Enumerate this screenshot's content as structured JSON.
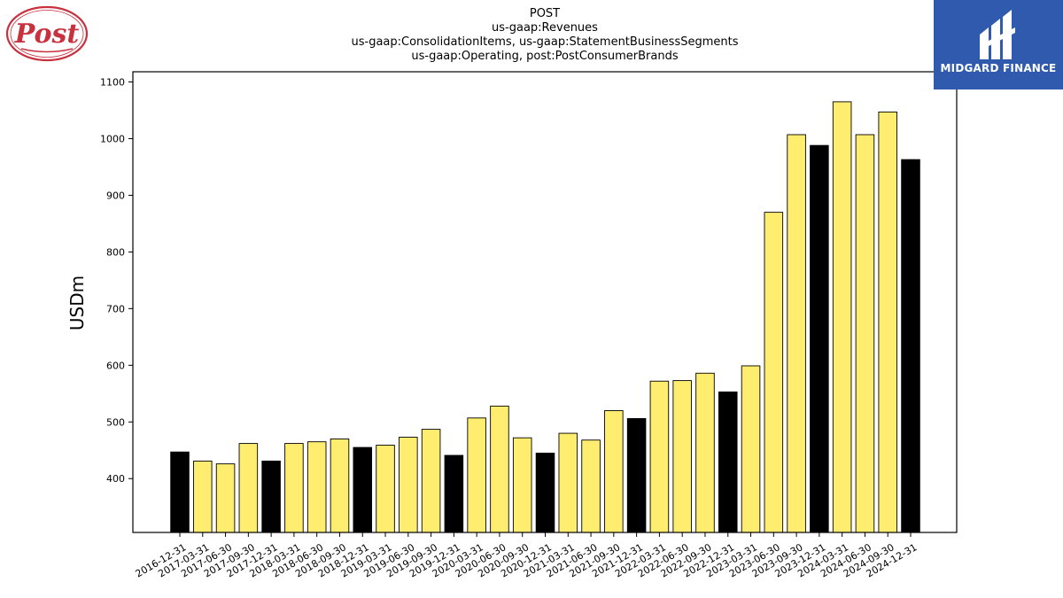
{
  "header": {
    "title_lines": [
      "POST",
      "us-gaap:Revenues",
      "us-gaap:ConsolidationItems, us-gaap:StatementBusinessSegments",
      "us-gaap:Operating, post:PostConsumerBrands"
    ]
  },
  "logos": {
    "left": {
      "name": "post-logo",
      "text": "Post",
      "color": "#c8313e"
    },
    "right": {
      "name": "midgard-finance-logo",
      "text": "MIDGARD FINANCE",
      "background": "#2f5aae"
    }
  },
  "chart_data": {
    "type": "bar",
    "title": "POST",
    "xlabel": "",
    "ylabel": "USDm",
    "ylim": [
      305,
      1118
    ],
    "yticks": [
      400,
      500,
      600,
      700,
      800,
      900,
      1000,
      1100
    ],
    "grid": false,
    "legend": "none",
    "colors": {
      "quarter": "#ffed6f",
      "year_end": "#000000",
      "edge": "#000000"
    },
    "categories": [
      "2016-12-31",
      "2017-03-31",
      "2017-06-30",
      "2017-09-30",
      "2017-12-31",
      "2018-03-31",
      "2018-06-30",
      "2018-09-30",
      "2018-12-31",
      "2019-03-31",
      "2019-06-30",
      "2019-09-30",
      "2019-12-31",
      "2020-03-31",
      "2020-06-30",
      "2020-09-30",
      "2020-12-31",
      "2021-03-31",
      "2021-06-30",
      "2021-09-30",
      "2021-12-31",
      "2022-03-31",
      "2022-06-30",
      "2022-09-30",
      "2022-12-31",
      "2023-03-31",
      "2023-06-30",
      "2023-09-30",
      "2023-12-31",
      "2024-03-31",
      "2024-06-30",
      "2024-09-30",
      "2024-12-31"
    ],
    "values": [
      447,
      431,
      426,
      462,
      431,
      462,
      465,
      470,
      455,
      459,
      473,
      487,
      441,
      507,
      528,
      472,
      445,
      480,
      468,
      520,
      506,
      572,
      573,
      586,
      553,
      599,
      870,
      1007,
      988,
      1065,
      1007,
      1047,
      963
    ]
  }
}
